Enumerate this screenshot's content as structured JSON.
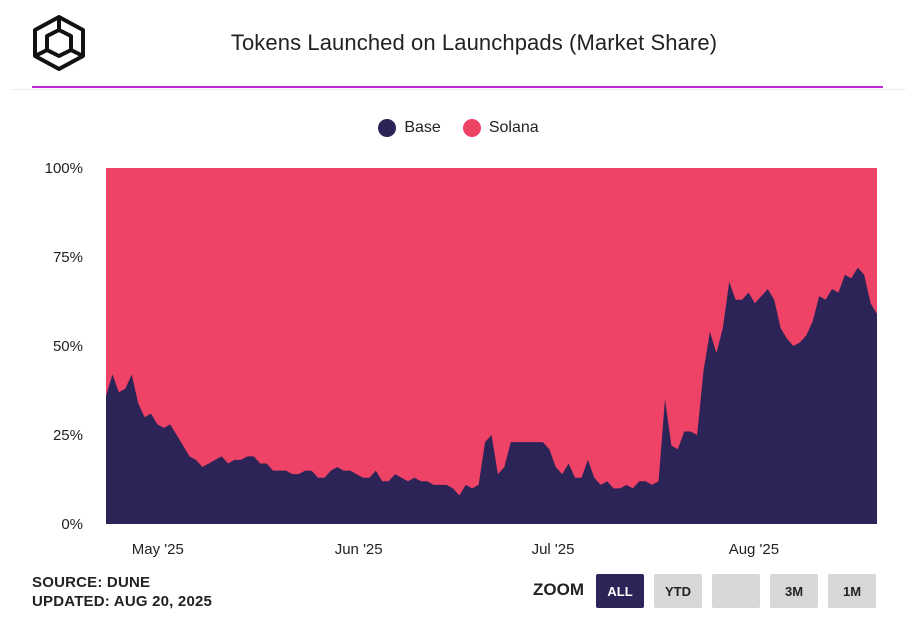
{
  "header": {
    "title": "Tokens Launched on Launchpads (Market Share)",
    "logo": "cube-logo"
  },
  "footer": {
    "source": "SOURCE: DUNE",
    "updated": "UPDATED: AUG 20, 2025",
    "zoom_label": "ZOOM",
    "zoom_buttons": [
      "ALL",
      "YTD",
      "",
      "3M",
      "1M"
    ],
    "zoom_active": "ALL"
  },
  "colors": {
    "base": "#2c2456",
    "solana": "#ee4266",
    "accent_rule": "#c026d3"
  },
  "chart_data": {
    "type": "area",
    "stacked": "percent",
    "title": "Tokens Launched on Launchpads (Market Share)",
    "legend_position": "top-center",
    "grid": false,
    "y_ticks": [
      "0%",
      "25%",
      "50%",
      "75%",
      "100%"
    ],
    "ylim": [
      0,
      100
    ],
    "x_ticks": [
      {
        "label": "May '25",
        "date": "2025-05-01"
      },
      {
        "label": "Jun '25",
        "date": "2025-06-01"
      },
      {
        "label": "Jul '25",
        "date": "2025-07-01"
      },
      {
        "label": "Aug '25",
        "date": "2025-08-01"
      }
    ],
    "x_range": [
      "2025-04-23",
      "2025-08-20"
    ],
    "series": [
      {
        "name": "Base",
        "color": "#2c2456",
        "values": [
          36,
          42,
          37,
          38,
          42,
          34,
          30,
          31,
          28,
          27,
          28,
          25,
          22,
          19,
          18,
          16,
          17,
          18,
          19,
          17,
          18,
          18,
          19,
          19,
          17,
          17,
          15,
          15,
          15,
          14,
          14,
          15,
          15,
          13,
          13,
          15,
          16,
          15,
          15,
          14,
          13,
          13,
          15,
          12,
          12,
          14,
          13,
          12,
          13,
          12,
          12,
          11,
          11,
          11,
          10,
          8,
          11,
          10,
          11,
          23,
          25,
          14,
          16,
          23,
          23,
          23,
          23,
          23,
          23,
          21,
          16,
          14,
          17,
          13,
          13,
          18,
          13,
          11,
          12,
          10,
          10,
          11,
          10,
          12,
          12,
          11,
          12,
          35,
          22,
          21,
          26,
          26,
          25,
          43,
          54,
          48,
          55,
          68,
          63,
          63,
          65,
          62,
          64,
          66,
          63,
          55,
          52,
          50,
          51,
          53,
          57,
          64,
          63,
          66,
          65,
          70,
          69,
          72,
          70,
          62,
          59
        ]
      },
      {
        "name": "Solana",
        "color": "#ee4266",
        "values": "100 minus Base for each day"
      }
    ]
  }
}
